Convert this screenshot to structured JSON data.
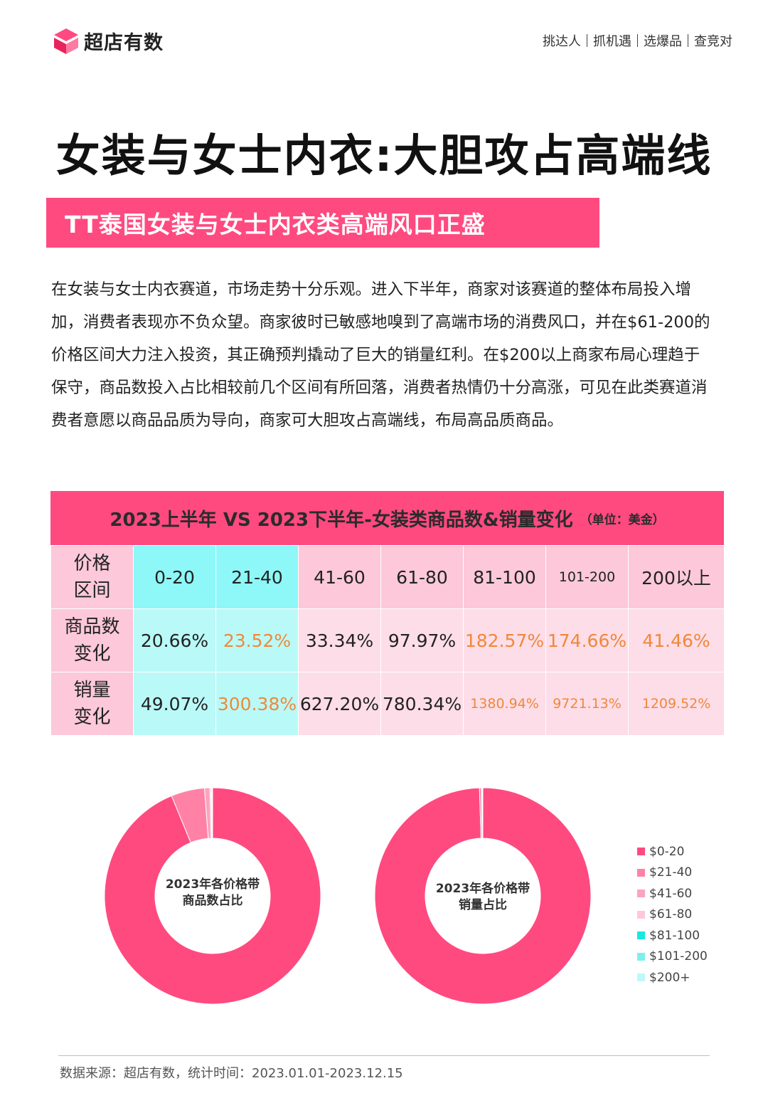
{
  "brand": {
    "name": "超店有数",
    "logo_icon": "brand-logo-icon",
    "accent": "#ff4a80"
  },
  "nav": {
    "items": [
      "挑达人",
      "抓机遇",
      "选爆品",
      "查竞对"
    ]
  },
  "title": "女装与女士内衣:大胆攻占高端线",
  "subtitle": "TT泰国女装与女士内衣类高端风口正盛",
  "paragraph": "在女装与女士内衣赛道，市场走势十分乐观。进入下半年，商家对该赛道的整体布局投入增加，消费者表现亦不负众望。商家彼时已敏感地嗅到了高端市场的消费风口，并在$61-200的价格区间大力注入投资，其正确预判撬动了巨大的销量红利。在$200以上商家布局心理趋于保守，商品数投入占比相较前几个区间有所回落，消费者热情仍十分高涨，可见在此类赛道消费者意愿以商品品质为导向，商家可大胆攻占高端线，布局高品质商品。",
  "table": {
    "title": "2023上半年 VS 2023下半年-女装类商品数&销量变化",
    "unit": "（单位：美金）",
    "rows": [
      {
        "label": "价格区间",
        "cells": [
          "0-20",
          "21-40",
          "41-60",
          "61-80",
          "81-100",
          "101-200",
          "200以上"
        ]
      },
      {
        "label": "商品数变化",
        "cells": [
          "20.66%",
          "23.52%",
          "33.34%",
          "97.97%",
          "182.57%",
          "174.66%",
          "41.46%"
        ]
      },
      {
        "label": "销量变化",
        "cells": [
          "49.07%",
          "300.38%",
          "627.20%",
          "780.34%",
          "1380.94%",
          "9721.13%",
          "1209.52%"
        ]
      }
    ],
    "highlight_color": "#f0883a"
  },
  "chart_data": [
    {
      "type": "pie",
      "title": "2023年各价格带商品数占比",
      "categories": [
        "$0-20",
        "$21-40",
        "$41-60",
        "$61-80",
        "$81-100",
        "$101-200",
        "$200+"
      ],
      "values": [
        93.8,
        5.0,
        0.8,
        0.2,
        0.1,
        0.05,
        0.05
      ],
      "colors": [
        "#ff4a80",
        "#ff82a6",
        "#fca3bf",
        "#fcc8da",
        "#19e8e0",
        "#7df0ee",
        "#bff8f6"
      ],
      "legend": "right"
    },
    {
      "type": "pie",
      "title": "2023年各价格带销量占比",
      "categories": [
        "$0-20",
        "$21-40",
        "$41-60",
        "$61-80",
        "$81-100",
        "$101-200",
        "$200+"
      ],
      "values": [
        99.5,
        0.3,
        0.1,
        0.04,
        0.03,
        0.02,
        0.01
      ],
      "colors": [
        "#ff4a80",
        "#ff82a6",
        "#fca3bf",
        "#fcc8da",
        "#19e8e0",
        "#7df0ee",
        "#bff8f6"
      ],
      "legend": "right"
    }
  ],
  "footer": "数据来源：超店有数，统计时间：2023.01.01-2023.12.15"
}
